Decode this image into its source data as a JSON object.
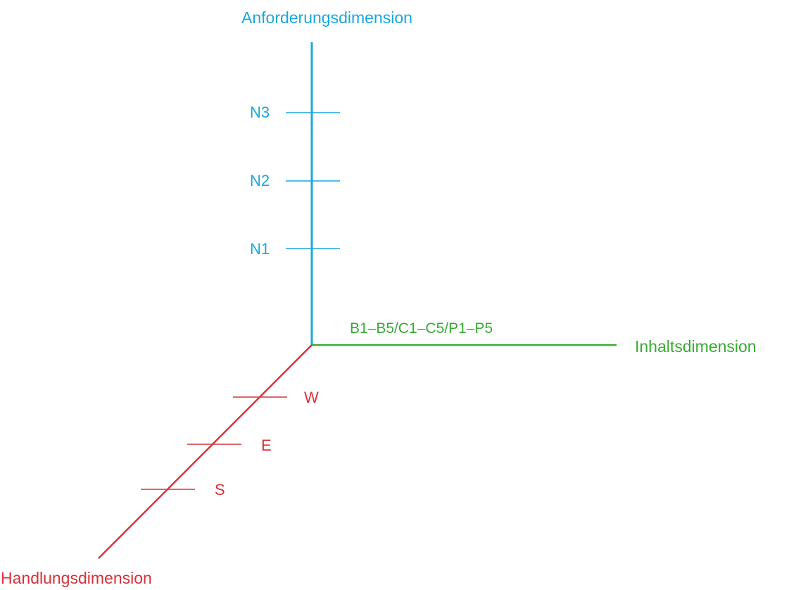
{
  "colors": {
    "vertical_axis": "#1aa7e0",
    "horizontal_axis": "#3aaa35",
    "diagonal_axis": "#d6323a",
    "background": "#ffffff"
  },
  "axes": {
    "vertical": {
      "name": "Anforderungsdimension",
      "ticks": [
        "N1",
        "N2",
        "N3"
      ]
    },
    "horizontal": {
      "name": "Inhaltsdimension",
      "label": "B1–B5/C1–C5/P1–P5"
    },
    "diagonal": {
      "name": "Handlungsdimension",
      "ticks": [
        "W",
        "E",
        "S"
      ]
    }
  }
}
